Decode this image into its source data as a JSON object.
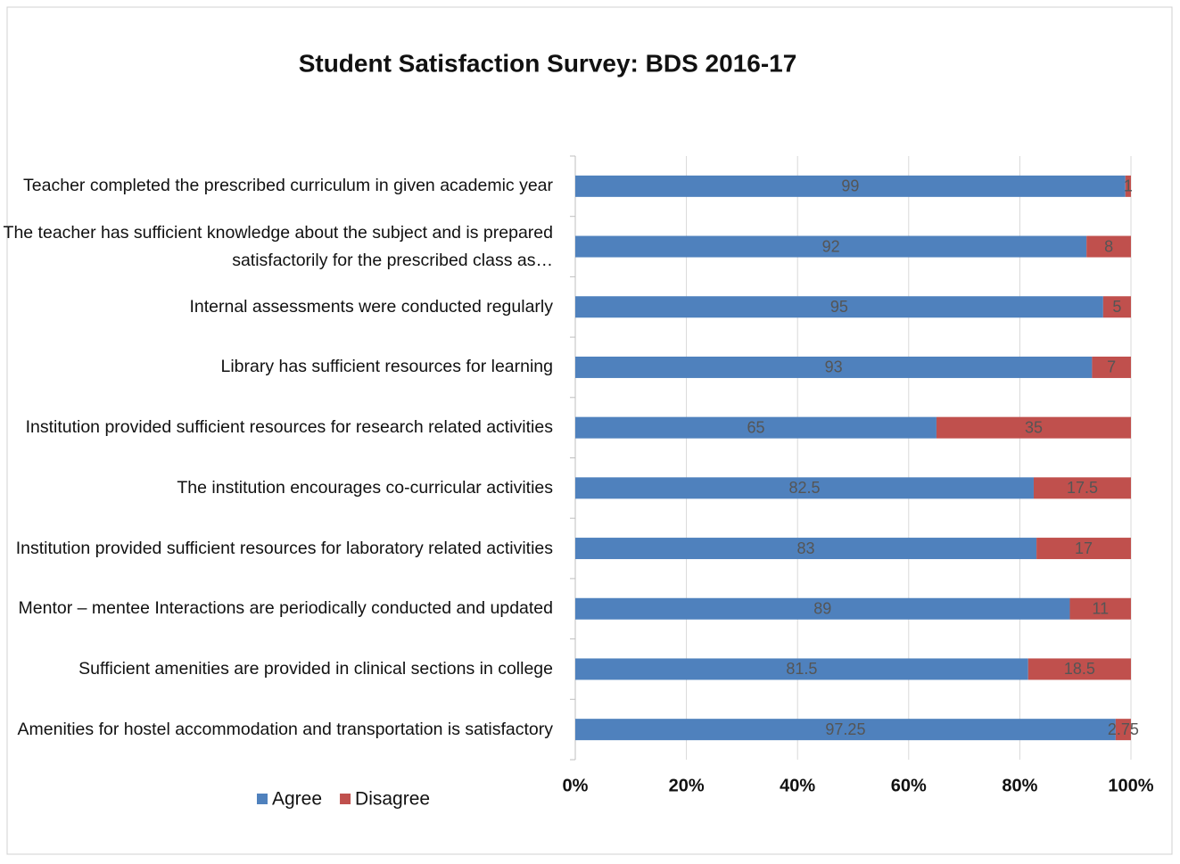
{
  "chart_data": {
    "type": "stacked_barh",
    "title": "Student Satisfaction Survey: BDS 2016-17",
    "categories": [
      "Teacher completed the prescribed curriculum in given academic year",
      "The teacher has sufficient knowledge about the subject and is prepared satisfactorily for the prescribed class as…",
      "Internal assessments were conducted regularly",
      "Library has sufficient resources for learning",
      "Institution provided sufficient resources for research related activities",
      "The institution encourages co-curricular activities",
      "Institution provided sufficient resources for laboratory related activities",
      "Mentor – mentee Interactions are periodically conducted and updated",
      "Sufficient amenities are provided in clinical sections in college",
      "Amenities for hostel accommodation and transportation is satisfactory"
    ],
    "series": [
      {
        "name": "Agree",
        "color": "#4f81bd",
        "values": [
          99,
          92,
          95,
          93,
          65,
          82.5,
          83,
          89,
          81.5,
          97.25
        ]
      },
      {
        "name": "Disagree",
        "color": "#c0504d",
        "values": [
          1,
          8,
          5,
          7,
          35,
          17.5,
          17,
          11,
          18.5,
          2.75
        ]
      }
    ],
    "xlim": [
      0,
      100
    ],
    "xticks": [
      {
        "value": 0,
        "label": "0%"
      },
      {
        "value": 20,
        "label": "20%"
      },
      {
        "value": 40,
        "label": "40%"
      },
      {
        "value": 60,
        "label": "60%"
      },
      {
        "value": 80,
        "label": "80%"
      },
      {
        "value": 100,
        "label": "100%"
      }
    ],
    "grid": true,
    "legend": "bottom-left"
  }
}
